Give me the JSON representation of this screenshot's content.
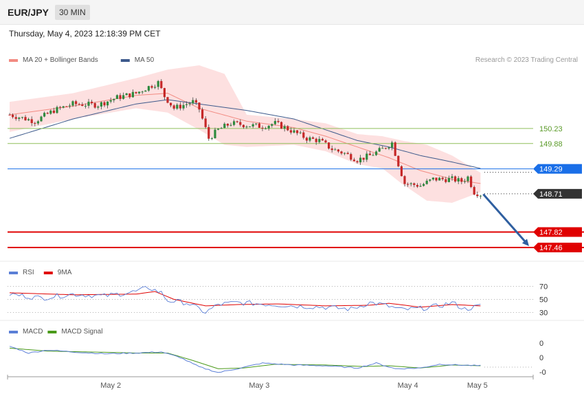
{
  "header": {
    "symbol": "EUR/JPY",
    "timeframe": "30 MIN"
  },
  "datetime": "Thursday, May 4, 2023 12:18:39 PM CET",
  "credit": "Research © 2023 Trading Central",
  "colors": {
    "ma20": "#f28b82",
    "ma50": "#3d5a8c",
    "bands_fill": "#fde0e0",
    "bull": "#2e8b3e",
    "bear": "#c62828",
    "resistance": "#8fbf5a",
    "pivot": "#1a6fe8",
    "support": "#e00000",
    "current": "#333333",
    "arrow": "#2f5fa0",
    "rsi": "#5b7fd6",
    "rsi_ma": "#e00000",
    "macd": "#5b7fd6",
    "macd_signal": "#4a9a1a"
  },
  "legends": {
    "price": [
      {
        "label": "MA 20 + Bollinger Bands",
        "color": "#f28b82"
      },
      {
        "label": "MA 50",
        "color": "#3d5a8c"
      }
    ],
    "rsi": [
      {
        "label": "RSI",
        "color": "#5b7fd6"
      },
      {
        "label": "9MA",
        "color": "#e00000"
      }
    ],
    "macd": [
      {
        "label": "MACD",
        "color": "#5b7fd6"
      },
      {
        "label": "MACD Signal",
        "color": "#4a9a1a"
      }
    ]
  },
  "chart_data": [
    {
      "type": "candlestick",
      "name": "price",
      "ylim": [
        147.3,
        151.7
      ],
      "levels": [
        {
          "value": 150.23,
          "label": "150.23",
          "kind": "resistance"
        },
        {
          "value": 149.88,
          "label": "149.88",
          "kind": "resistance"
        },
        {
          "value": 149.29,
          "label": "149.29",
          "kind": "pivot"
        },
        {
          "value": 148.71,
          "label": "148.71",
          "kind": "current"
        },
        {
          "value": 147.82,
          "label": "147.82",
          "kind": "support"
        },
        {
          "value": 147.46,
          "label": "147.46",
          "kind": "support"
        }
      ],
      "close_keypoints": [
        [
          0,
          150.55
        ],
        [
          8,
          150.4
        ],
        [
          14,
          150.65
        ],
        [
          20,
          150.8
        ],
        [
          28,
          150.78
        ],
        [
          34,
          150.95
        ],
        [
          40,
          151.05
        ],
        [
          44,
          151.2
        ],
        [
          47,
          151.3
        ],
        [
          49,
          150.98
        ],
        [
          52,
          150.7
        ],
        [
          56,
          150.8
        ],
        [
          58,
          150.85
        ],
        [
          60,
          150.68
        ],
        [
          63,
          150.0
        ],
        [
          66,
          150.2
        ],
        [
          70,
          150.35
        ],
        [
          76,
          150.3
        ],
        [
          80,
          150.28
        ],
        [
          84,
          150.35
        ],
        [
          88,
          150.22
        ],
        [
          94,
          150.0
        ],
        [
          98,
          149.95
        ],
        [
          102,
          149.75
        ],
        [
          106,
          149.65
        ],
        [
          110,
          149.5
        ],
        [
          114,
          149.6
        ],
        [
          118,
          149.75
        ],
        [
          121,
          149.9
        ],
        [
          123,
          149.4
        ],
        [
          125,
          148.95
        ],
        [
          130,
          148.9
        ],
        [
          134,
          149.05
        ],
        [
          140,
          149.05
        ],
        [
          143,
          149.0
        ],
        [
          145,
          149.1
        ],
        [
          147,
          148.75
        ],
        [
          149,
          148.7
        ]
      ],
      "ma20_keypoints": [
        [
          0,
          150.55
        ],
        [
          20,
          150.75
        ],
        [
          40,
          151.0
        ],
        [
          50,
          151.05
        ],
        [
          60,
          150.7
        ],
        [
          75,
          150.4
        ],
        [
          90,
          150.25
        ],
        [
          100,
          150.05
        ],
        [
          110,
          149.8
        ],
        [
          120,
          149.55
        ],
        [
          130,
          149.25
        ],
        [
          140,
          149.05
        ],
        [
          149,
          148.95
        ]
      ],
      "band_upper_keypoints": [
        [
          0,
          150.85
        ],
        [
          20,
          151.05
        ],
        [
          40,
          151.4
        ],
        [
          50,
          151.6
        ],
        [
          60,
          151.7
        ],
        [
          68,
          151.5
        ],
        [
          75,
          150.55
        ],
        [
          90,
          150.45
        ],
        [
          100,
          150.35
        ],
        [
          110,
          150.1
        ],
        [
          118,
          150.05
        ],
        [
          124,
          149.95
        ],
        [
          132,
          149.85
        ],
        [
          140,
          149.6
        ],
        [
          149,
          149.2
        ]
      ],
      "band_lower_keypoints": [
        [
          0,
          150.15
        ],
        [
          20,
          150.45
        ],
        [
          40,
          150.7
        ],
        [
          50,
          150.6
        ],
        [
          60,
          150.2
        ],
        [
          68,
          149.85
        ],
        [
          75,
          149.8
        ],
        [
          90,
          149.85
        ],
        [
          100,
          149.7
        ],
        [
          110,
          149.4
        ],
        [
          118,
          149.3
        ],
        [
          124,
          148.95
        ],
        [
          132,
          148.55
        ],
        [
          140,
          148.5
        ],
        [
          149,
          148.75
        ]
      ],
      "ma50_keypoints": [
        [
          0,
          150.0
        ],
        [
          20,
          150.45
        ],
        [
          40,
          150.8
        ],
        [
          50,
          150.9
        ],
        [
          60,
          150.8
        ],
        [
          75,
          150.65
        ],
        [
          90,
          150.45
        ],
        [
          100,
          150.2
        ],
        [
          110,
          149.95
        ],
        [
          120,
          149.8
        ],
        [
          130,
          149.6
        ],
        [
          140,
          149.45
        ],
        [
          149,
          149.3
        ]
      ],
      "x_ticks": [
        {
          "index": 32,
          "label": "May 2"
        },
        {
          "index": 79,
          "label": "May 3"
        },
        {
          "index": 126,
          "label": "May 4"
        },
        {
          "index": 148,
          "label": "May 5"
        }
      ],
      "projection": {
        "from_index": 149,
        "from_value": 148.7,
        "to_value": 147.46
      }
    },
    {
      "type": "line",
      "name": "rsi",
      "ylim": [
        22,
        82
      ],
      "ticks": [
        70,
        50,
        30
      ],
      "rsi_keypoints": [
        [
          0,
          58
        ],
        [
          10,
          52
        ],
        [
          20,
          58
        ],
        [
          30,
          55
        ],
        [
          40,
          62
        ],
        [
          44,
          68
        ],
        [
          48,
          60
        ],
        [
          50,
          48
        ],
        [
          56,
          45
        ],
        [
          62,
          30
        ],
        [
          66,
          42
        ],
        [
          72,
          45
        ],
        [
          80,
          43
        ],
        [
          90,
          40
        ],
        [
          100,
          38
        ],
        [
          108,
          35
        ],
        [
          114,
          45
        ],
        [
          118,
          42
        ],
        [
          124,
          34
        ],
        [
          130,
          36
        ],
        [
          136,
          40
        ],
        [
          140,
          45
        ],
        [
          144,
          35
        ],
        [
          149,
          40
        ]
      ],
      "ma_keypoints": [
        [
          0,
          60
        ],
        [
          20,
          57
        ],
        [
          40,
          58
        ],
        [
          46,
          62
        ],
        [
          52,
          50
        ],
        [
          62,
          40
        ],
        [
          72,
          42
        ],
        [
          85,
          43
        ],
        [
          100,
          40
        ],
        [
          114,
          41
        ],
        [
          120,
          44
        ],
        [
          130,
          38
        ],
        [
          140,
          42
        ],
        [
          149,
          40
        ]
      ]
    },
    {
      "type": "line",
      "name": "macd",
      "ylim": [
        -0.55,
        0.55
      ],
      "ticks": [
        "0",
        "0",
        "-0"
      ],
      "macd_keypoints": [
        [
          0,
          0.3
        ],
        [
          6,
          0.12
        ],
        [
          12,
          0.2
        ],
        [
          20,
          0.15
        ],
        [
          30,
          0.1
        ],
        [
          40,
          0.12
        ],
        [
          48,
          0.15
        ],
        [
          54,
          0.0
        ],
        [
          60,
          -0.25
        ],
        [
          66,
          -0.4
        ],
        [
          72,
          -0.3
        ],
        [
          80,
          -0.15
        ],
        [
          90,
          -0.2
        ],
        [
          100,
          -0.22
        ],
        [
          110,
          -0.28
        ],
        [
          116,
          -0.15
        ],
        [
          122,
          -0.3
        ],
        [
          130,
          -0.28
        ],
        [
          136,
          -0.18
        ],
        [
          142,
          -0.2
        ],
        [
          149,
          -0.22
        ]
      ],
      "signal_keypoints": [
        [
          0,
          0.25
        ],
        [
          12,
          0.17
        ],
        [
          24,
          0.15
        ],
        [
          40,
          0.12
        ],
        [
          50,
          0.12
        ],
        [
          58,
          -0.08
        ],
        [
          66,
          -0.3
        ],
        [
          74,
          -0.28
        ],
        [
          84,
          -0.18
        ],
        [
          100,
          -0.2
        ],
        [
          112,
          -0.24
        ],
        [
          120,
          -0.22
        ],
        [
          130,
          -0.28
        ],
        [
          140,
          -0.2
        ],
        [
          149,
          -0.22
        ]
      ]
    }
  ]
}
